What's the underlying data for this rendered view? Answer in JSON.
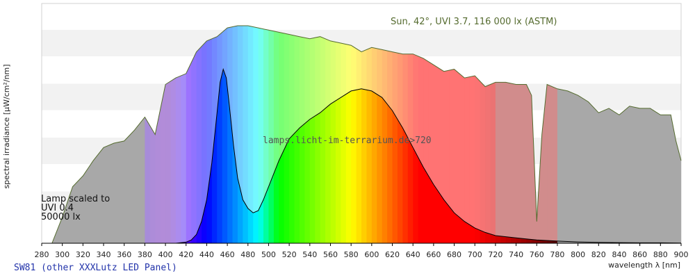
{
  "chart_data": {
    "type": "area",
    "title": "",
    "xlabel": "wavelength λ [nm]",
    "ylabel": "spectral irradiance [µW/cm²/nm]",
    "xlim": [
      280,
      900
    ],
    "ylim": [
      0,
      1
    ],
    "x_ticks": [
      280,
      300,
      320,
      340,
      360,
      380,
      400,
      420,
      440,
      460,
      480,
      500,
      520,
      540,
      560,
      580,
      600,
      620,
      640,
      660,
      680,
      700,
      720,
      740,
      760,
      780,
      800,
      820,
      840,
      860,
      880,
      900
    ],
    "grid": "horizontal bands",
    "series": [
      {
        "name": "Sun, 42°, UVI 3.7, 116 000 lx (ASTM)",
        "color": "#556b2f",
        "x": [
          290,
          300,
          310,
          320,
          330,
          340,
          350,
          360,
          370,
          380,
          390,
          400,
          410,
          420,
          430,
          440,
          450,
          460,
          470,
          480,
          490,
          500,
          510,
          520,
          530,
          540,
          550,
          560,
          570,
          580,
          590,
          600,
          610,
          620,
          630,
          640,
          650,
          660,
          670,
          680,
          690,
          700,
          710,
          720,
          730,
          740,
          750,
          755,
          760,
          765,
          770,
          780,
          790,
          800,
          810,
          820,
          830,
          840,
          850,
          860,
          870,
          880,
          890,
          895,
          900
        ],
        "y": [
          0.0,
          0.12,
          0.26,
          0.31,
          0.38,
          0.44,
          0.46,
          0.47,
          0.52,
          0.58,
          0.5,
          0.73,
          0.76,
          0.78,
          0.88,
          0.93,
          0.95,
          0.99,
          1.0,
          1.0,
          0.99,
          0.98,
          0.97,
          0.96,
          0.95,
          0.94,
          0.95,
          0.93,
          0.92,
          0.91,
          0.88,
          0.9,
          0.89,
          0.88,
          0.87,
          0.87,
          0.85,
          0.82,
          0.79,
          0.8,
          0.76,
          0.77,
          0.72,
          0.74,
          0.74,
          0.73,
          0.73,
          0.68,
          0.1,
          0.5,
          0.73,
          0.71,
          0.7,
          0.68,
          0.65,
          0.6,
          0.62,
          0.59,
          0.63,
          0.62,
          0.62,
          0.59,
          0.59,
          0.47,
          0.38
        ]
      },
      {
        "name": "SW81 (other XXXLutz LED Panel)",
        "color": "#000000",
        "x": [
          290,
          300,
          320,
          340,
          360,
          380,
          400,
          410,
          420,
          425,
          430,
          435,
          440,
          445,
          450,
          453,
          456,
          459,
          462,
          466,
          470,
          475,
          480,
          485,
          490,
          495,
          500,
          510,
          520,
          530,
          540,
          550,
          560,
          570,
          580,
          590,
          600,
          610,
          620,
          630,
          640,
          650,
          660,
          670,
          680,
          690,
          700,
          710,
          720,
          740,
          760,
          780,
          800,
          820,
          840,
          860,
          880,
          900
        ],
        "y": [
          0.0,
          0.0,
          0.0,
          0.0,
          0.0,
          0.0,
          0.0,
          0.0,
          0.005,
          0.015,
          0.04,
          0.1,
          0.2,
          0.37,
          0.6,
          0.74,
          0.8,
          0.76,
          0.63,
          0.45,
          0.3,
          0.2,
          0.16,
          0.14,
          0.15,
          0.2,
          0.26,
          0.38,
          0.48,
          0.53,
          0.57,
          0.6,
          0.64,
          0.67,
          0.7,
          0.71,
          0.7,
          0.67,
          0.61,
          0.53,
          0.44,
          0.35,
          0.27,
          0.2,
          0.14,
          0.1,
          0.07,
          0.05,
          0.035,
          0.025,
          0.015,
          0.01,
          0.006,
          0.004,
          0.003,
          0.002,
          0.002,
          0.001
        ]
      }
    ],
    "annotations": {
      "sun_label": "Sun, 42°, UVI 3.7, 116 000 lx (ASTM)",
      "watermark": "lamps.licht-im-terrarium.de>720",
      "lamp_note": [
        "Lamp scaled to",
        "UVI 0.4",
        "50000 lx"
      ],
      "footer": "SW81 (other XXXLutz LED Panel)"
    }
  }
}
